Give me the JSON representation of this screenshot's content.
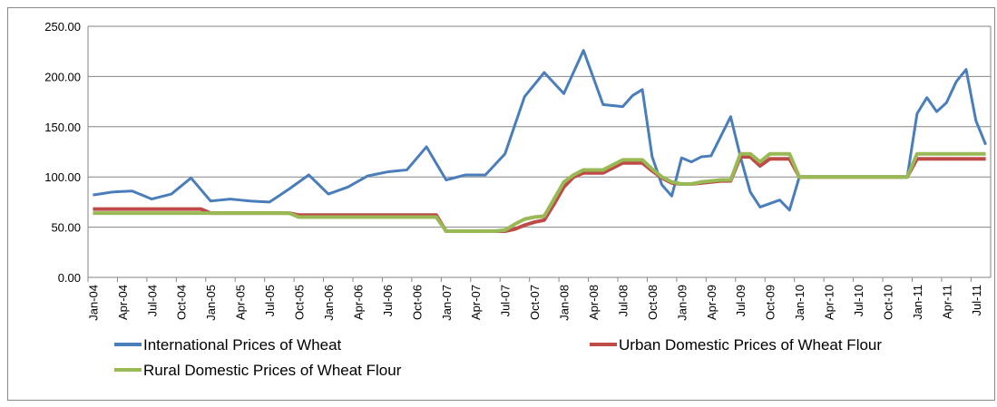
{
  "chart_data": {
    "type": "line",
    "categories": [
      "Jan-04",
      null,
      null,
      "Apr-04",
      null,
      null,
      "Jul-04",
      null,
      null,
      "Oct-04",
      null,
      null,
      "Jan-05",
      null,
      null,
      "Apr-05",
      null,
      null,
      "Jul-05",
      null,
      null,
      "Oct-05",
      null,
      null,
      "Jan-06",
      null,
      null,
      "Apr-06",
      null,
      null,
      "Jul-06",
      null,
      null,
      "Oct-06",
      null,
      null,
      "Jan-07",
      null,
      null,
      "Apr-07",
      null,
      null,
      "Jul-07",
      null,
      null,
      "Oct-07",
      null,
      null,
      "Jan-08",
      null,
      null,
      "Apr-08",
      null,
      null,
      "Jul-08",
      null,
      null,
      "Oct-08",
      null,
      null,
      "Jan-09",
      null,
      null,
      "Apr-09",
      null,
      null,
      "Jul-09",
      null,
      null,
      "Oct-09",
      null,
      null,
      "Jan-10",
      null,
      null,
      "Apr-10",
      null,
      null,
      "Jul-10",
      null,
      null,
      "Oct-10",
      null,
      null,
      "Jan-11",
      null,
      null,
      "Apr-11",
      null,
      null,
      "Jul-11",
      null
    ],
    "series": [
      {
        "name": "International Prices of Wheat",
        "color": "#4a7ebb",
        "values": [
          82,
          83.5,
          85,
          85.5,
          86,
          82,
          78,
          80.5,
          83,
          91,
          99,
          87.5,
          76,
          77,
          78,
          77,
          76,
          75.5,
          75,
          81.5,
          88,
          95,
          102,
          92.5,
          83,
          86.5,
          90,
          95.5,
          101,
          103,
          105,
          106,
          107,
          118.5,
          130,
          113.5,
          97,
          99.5,
          102,
          102,
          102,
          112.5,
          123,
          151.5,
          180,
          192,
          204,
          193.5,
          183,
          204.5,
          226,
          199,
          172,
          171,
          170,
          181,
          187,
          120,
          92,
          81,
          119,
          115,
          120,
          121,
          140.5,
          160,
          120,
          85,
          70,
          73.5,
          77,
          67,
          100,
          100,
          100,
          100,
          100,
          100,
          100,
          100,
          100,
          100,
          100,
          100,
          163,
          179,
          165,
          174,
          195,
          207,
          156,
          132
        ]
      },
      {
        "name": "Urban Domestic Prices of Wheat Flour",
        "color": "#be4b48",
        "values": [
          68,
          68,
          68,
          68,
          68,
          68,
          68,
          68,
          68,
          68,
          68,
          68,
          64,
          64,
          64,
          64,
          64,
          64,
          64,
          64,
          64,
          62,
          62,
          62,
          62,
          62,
          62,
          62,
          62,
          62,
          62,
          62,
          62,
          62,
          62,
          62,
          46,
          46,
          46,
          46,
          46,
          46,
          46,
          48,
          52,
          55,
          57,
          73,
          90,
          100,
          104,
          104,
          104,
          109,
          114,
          114,
          114,
          106,
          99,
          94,
          93,
          93,
          94,
          95,
          96,
          96,
          120,
          120,
          111,
          118,
          118,
          118,
          100,
          100,
          100,
          100,
          100,
          100,
          100,
          100,
          100,
          100,
          100,
          100,
          118,
          118,
          118,
          118,
          118,
          118,
          118,
          118
        ]
      },
      {
        "name": "Rural Domestic Prices of Wheat Flour",
        "color": "#98b954",
        "values": [
          64,
          64,
          64,
          64,
          64,
          64,
          64,
          64,
          64,
          64,
          64,
          64,
          64,
          64,
          64,
          64,
          64,
          64,
          64,
          64,
          64,
          60,
          60,
          60,
          60,
          60,
          60,
          60,
          60,
          60,
          60,
          60,
          60,
          60,
          60,
          60,
          46,
          46,
          46,
          46,
          46,
          46,
          47,
          53,
          58,
          60,
          61,
          78,
          95,
          102,
          107,
          107,
          107,
          112,
          117,
          117,
          117,
          108,
          100,
          95,
          93,
          93,
          95,
          96,
          97,
          97,
          123,
          123,
          115,
          123,
          123,
          123,
          100,
          100,
          100,
          100,
          100,
          100,
          100,
          100,
          100,
          100,
          100,
          100,
          123,
          123,
          123,
          123,
          123,
          123,
          123,
          123
        ]
      }
    ],
    "ylim": [
      0,
      250
    ],
    "yticks": [
      {
        "value": 0,
        "label": "0.00"
      },
      {
        "value": 50,
        "label": "50.00"
      },
      {
        "value": 100,
        "label": "100.00"
      },
      {
        "value": 150,
        "label": "150.00"
      },
      {
        "value": 200,
        "label": "200.00"
      },
      {
        "value": 250,
        "label": "250.00"
      }
    ],
    "grid": true,
    "legend": "bottom"
  }
}
